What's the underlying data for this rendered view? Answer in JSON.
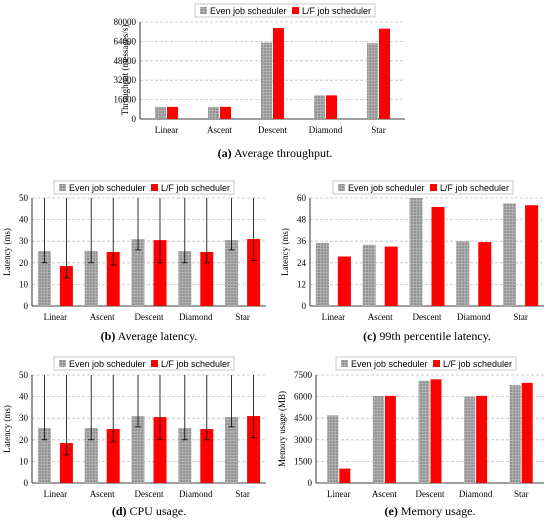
{
  "colors": {
    "even": "#9a9a9a",
    "lf": "#ff0000",
    "grid": "#c0c0c0",
    "axis": "#000000"
  },
  "legend": {
    "even": "Even job scheduler",
    "lf": "L/F job scheduler"
  },
  "chart_data": [
    {
      "id": "a",
      "type": "bar",
      "caption_label": "(a)",
      "caption_text": " Average throughput.",
      "ylabel": "Throughput (messages/s)",
      "xlabel": "",
      "categories": [
        "Linear",
        "Ascent",
        "Descent",
        "Diamond",
        "Star"
      ],
      "ylim": [
        0,
        80000
      ],
      "yticks": [
        0,
        16000,
        32000,
        48000,
        64000,
        80000
      ],
      "grid": true,
      "legend_position": "top",
      "series": [
        {
          "key": "even",
          "values": [
            10000,
            10000,
            63000,
            19500,
            62500
          ]
        },
        {
          "key": "lf",
          "values": [
            10000,
            10000,
            75000,
            19500,
            74500
          ]
        }
      ]
    },
    {
      "id": "b",
      "type": "bar",
      "caption_label": "(b)",
      "caption_text": " Average latency.",
      "ylabel": "Latency (ms)",
      "xlabel": "",
      "categories": [
        "Linear",
        "Ascent",
        "Descent",
        "Diamond",
        "Star"
      ],
      "ylim": [
        0,
        50
      ],
      "yticks": [
        0,
        10,
        20,
        30,
        40,
        50
      ],
      "grid": true,
      "legend_position": "top",
      "series": [
        {
          "key": "even",
          "values": [
            25.5,
            25.5,
            31,
            25.5,
            30.5
          ],
          "err_low": [
            20,
            20,
            26,
            20,
            26
          ]
        },
        {
          "key": "lf",
          "values": [
            18.5,
            25,
            30.5,
            25,
            31
          ],
          "err_low": [
            13,
            19,
            20,
            20,
            21
          ]
        }
      ]
    },
    {
      "id": "c",
      "type": "bar",
      "caption_label": "(c)",
      "caption_text": " 99th percentile latency.",
      "ylabel": "Latency (ms)",
      "xlabel": "",
      "categories": [
        "Linear",
        "Ascent",
        "Descent",
        "Diamond",
        "Star"
      ],
      "ylim": [
        0,
        60
      ],
      "yticks": [
        0,
        12,
        24,
        36,
        48,
        60
      ],
      "grid": true,
      "legend_position": "top",
      "series": [
        {
          "key": "even",
          "values": [
            35,
            34,
            60,
            36,
            57
          ]
        },
        {
          "key": "lf",
          "values": [
            27.5,
            33,
            55,
            35.5,
            56
          ]
        }
      ]
    },
    {
      "id": "d",
      "type": "bar",
      "caption_label": "(d)",
      "caption_text": " CPU usage.",
      "ylabel": "Latency (ms)",
      "xlabel": "",
      "categories": [
        "Linear",
        "Ascent",
        "Descent",
        "Diamond",
        "Star"
      ],
      "ylim": [
        0,
        50
      ],
      "yticks": [
        0,
        10,
        20,
        30,
        40,
        50
      ],
      "grid": true,
      "legend_position": "top",
      "series": [
        {
          "key": "even",
          "values": [
            25.5,
            25.5,
            31,
            25.5,
            30.5
          ],
          "err_low": [
            20,
            20,
            26,
            20,
            26
          ]
        },
        {
          "key": "lf",
          "values": [
            18.5,
            25,
            30.5,
            25,
            31
          ],
          "err_low": [
            13,
            19,
            20,
            20,
            21
          ]
        }
      ]
    },
    {
      "id": "e",
      "type": "bar",
      "caption_label": "(e)",
      "caption_text": " Memory usage.",
      "ylabel": "Memory usage (MB)",
      "xlabel": "",
      "categories": [
        "Linear",
        "Ascent",
        "Descent",
        "Diamond",
        "Star"
      ],
      "ylim": [
        0,
        7500
      ],
      "yticks": [
        0,
        1500,
        3000,
        4500,
        6000,
        7500
      ],
      "grid": true,
      "legend_position": "top",
      "series": [
        {
          "key": "even",
          "values": [
            4700,
            6050,
            7100,
            6000,
            6800
          ]
        },
        {
          "key": "lf",
          "values": [
            1000,
            6050,
            7200,
            6050,
            6950
          ]
        }
      ]
    }
  ]
}
